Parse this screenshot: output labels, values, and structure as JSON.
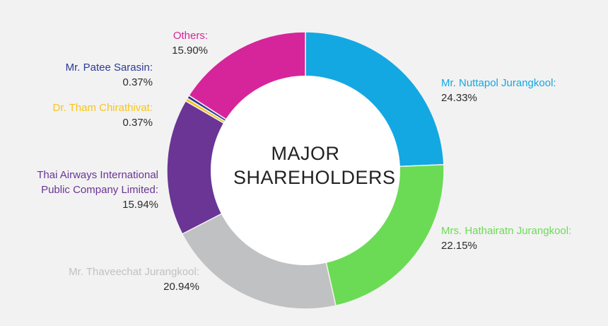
{
  "chart_data": {
    "type": "pie",
    "title": "MAJOR SHAREHOLDERS",
    "title_lines": [
      "MAJOR",
      "SHAREHOLDERS"
    ],
    "categories": [
      "Mr. Nuttapol Jurangkool:",
      "Mrs. Hathairatn Jurangkool:",
      "Mr. Thaveechat Jurangkool:",
      "Thai Airways International Public Company Limited:",
      "Dr. Tham Chirathivat:",
      "Mr. Patee Sarasin:",
      "Others:"
    ],
    "values": [
      24.33,
      22.15,
      20.94,
      15.94,
      0.37,
      0.37,
      15.9
    ],
    "value_labels": [
      "24.33%",
      "22.15%",
      "20.94%",
      "15.94%",
      "0.37%",
      "0.37%",
      "15.90%"
    ],
    "colors": [
      "#13a8e2",
      "#6bdb55",
      "#c0c1c3",
      "#6a3595",
      "#f7c51c",
      "#2b3a96",
      "#d6259a"
    ],
    "style": "donut"
  },
  "labels": {
    "nuttapol": {
      "name": "Mr. Nuttapol Jurangkool:",
      "pct": "24.33%"
    },
    "hathairatn": {
      "name": "Mrs. Hathairatn Jurangkool:",
      "pct": "22.15%"
    },
    "thaveechat": {
      "name": "Mr. Thaveechat Jurangkool:",
      "pct": "20.94%"
    },
    "thai_airways": {
      "name_line1": "Thai Airways International",
      "name_line2": "Public Company Limited:",
      "pct": "15.94%"
    },
    "tham": {
      "name": "Dr. Tham Chirathivat:",
      "pct": "0.37%"
    },
    "patee": {
      "name": "Mr. Patee Sarasin:",
      "pct": "0.37%"
    },
    "others": {
      "name": "Others:",
      "pct": "15.90%"
    }
  }
}
